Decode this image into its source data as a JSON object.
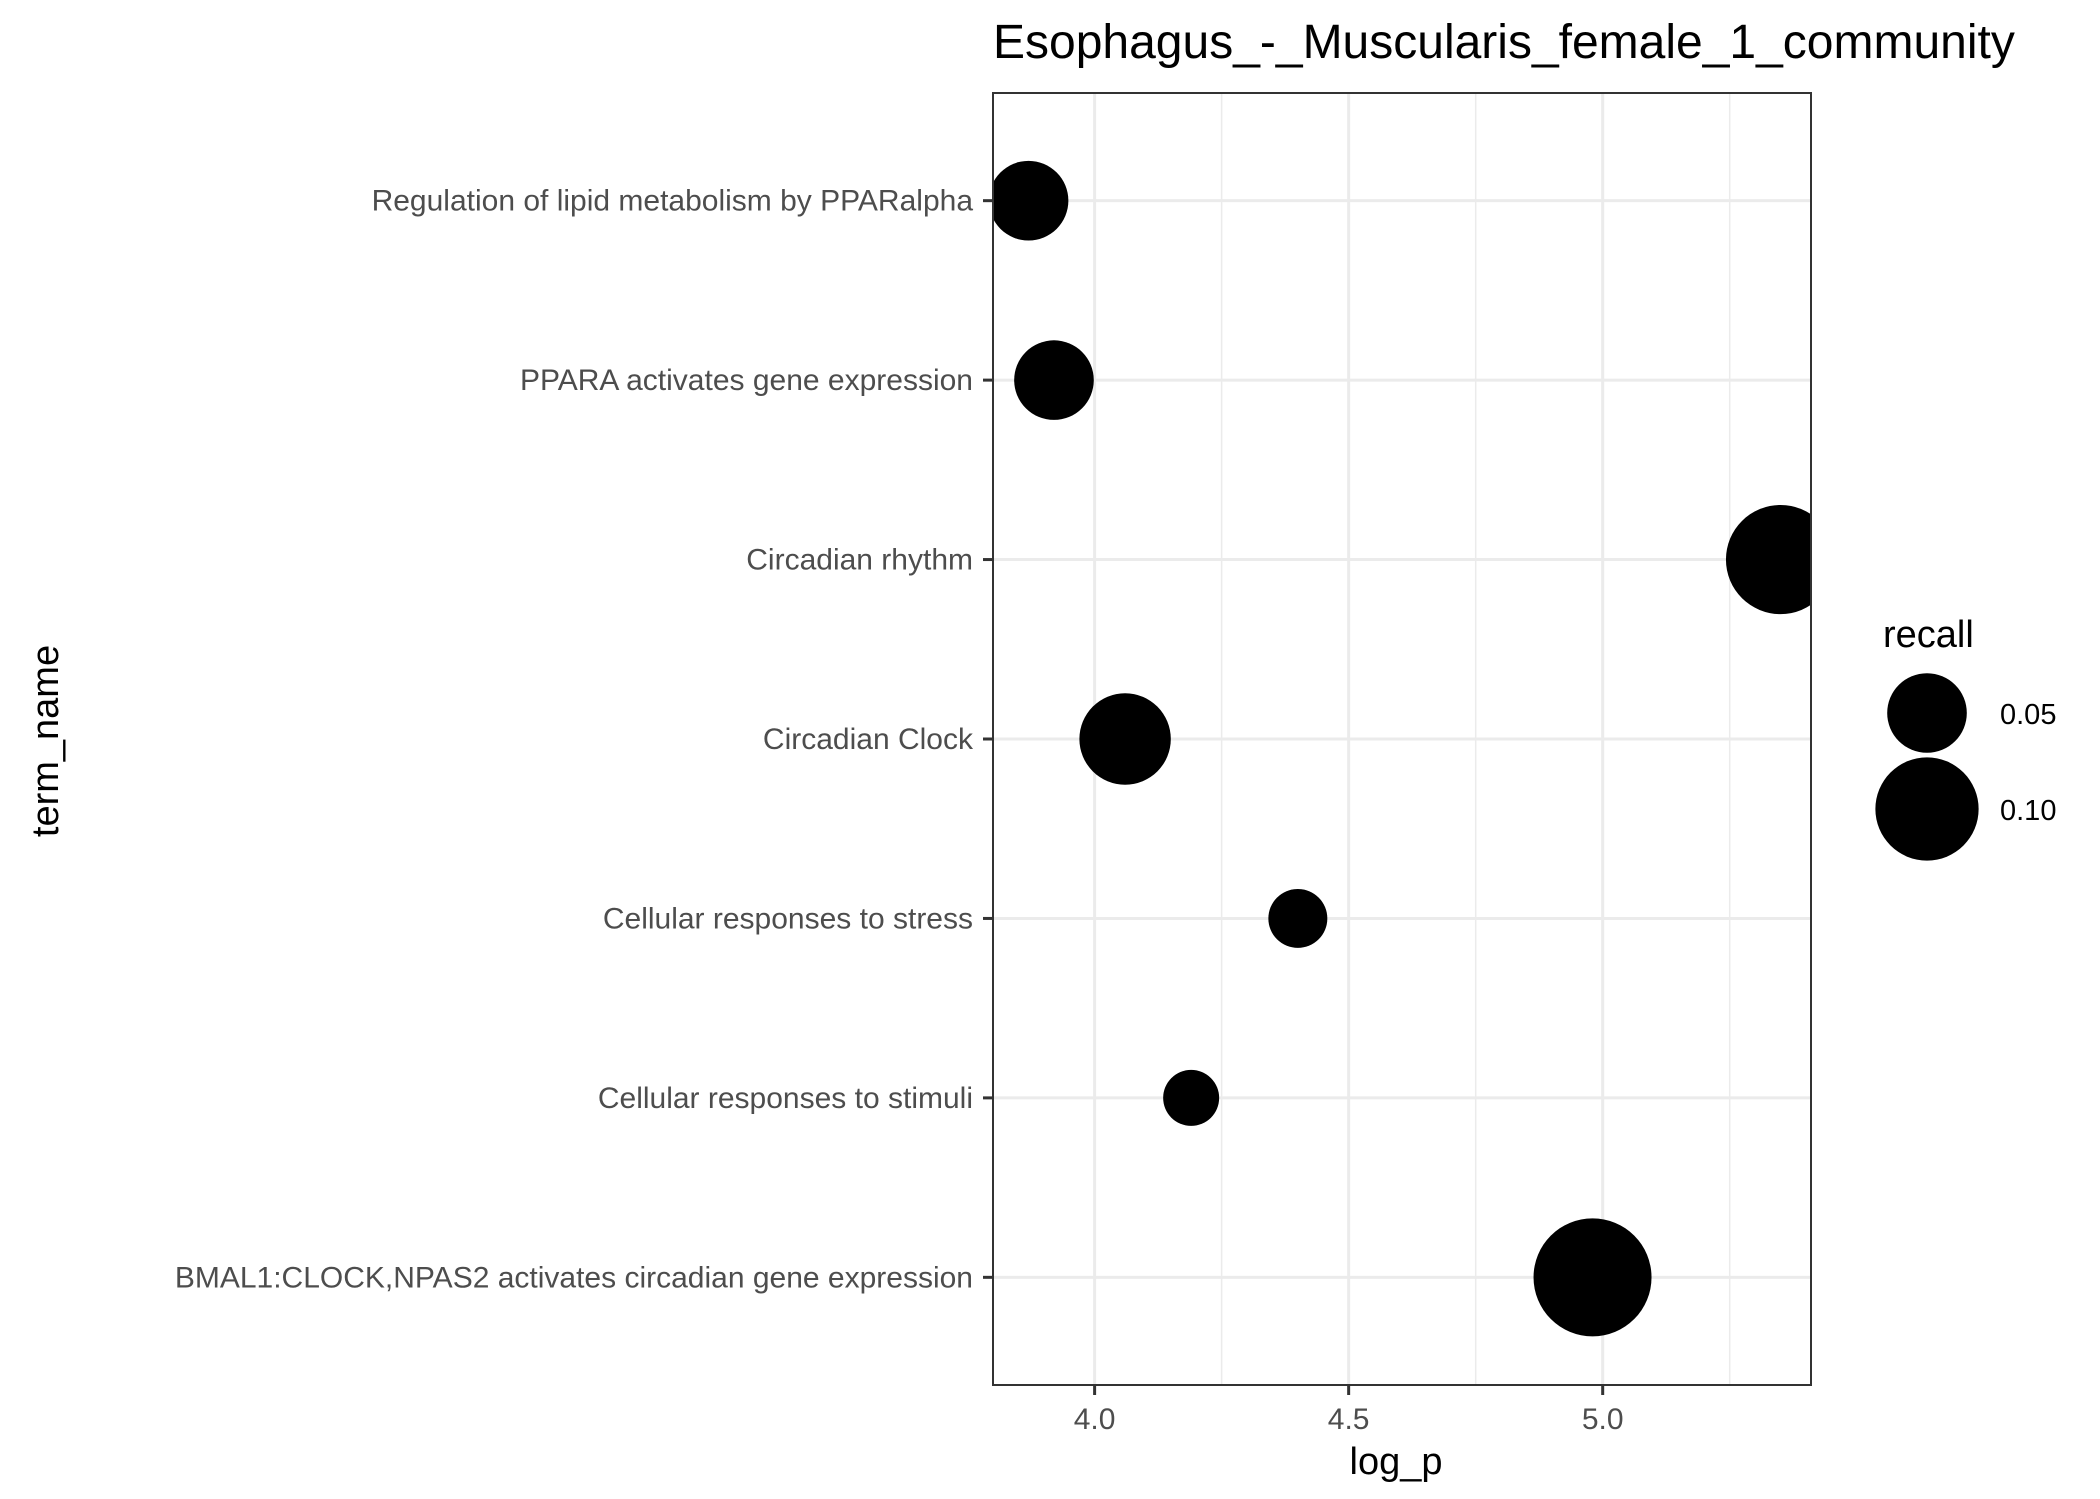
{
  "chart_data": {
    "type": "scatter",
    "title": "Esophagus_-_Muscularis_female_1_community",
    "xlabel": "log_p",
    "ylabel": "term_name",
    "xlim": [
      3.8,
      5.41
    ],
    "x_ticks": [
      4.0,
      4.5,
      5.0
    ],
    "x_tick_labels": [
      "4.0",
      "4.5",
      "5.0"
    ],
    "grid": true,
    "categories": [
      "Regulation of lipid metabolism by PPARalpha",
      "PPARA activates gene expression",
      "Circadian rhythm",
      "Circadian Clock",
      "Cellular responses to stress",
      "Cellular responses to stimuli",
      "BMAL1:CLOCK,NPAS2 activates circadian gene expression"
    ],
    "points": [
      {
        "term": "Regulation of lipid metabolism by PPARalpha",
        "log_p": 3.87,
        "recall": 0.07
      },
      {
        "term": "PPARA activates gene expression",
        "log_p": 3.92,
        "recall": 0.07
      },
      {
        "term": "Circadian rhythm",
        "log_p": 5.35,
        "recall": 0.12
      },
      {
        "term": "Circadian Clock",
        "log_p": 4.06,
        "recall": 0.09
      },
      {
        "term": "Cellular responses to stress",
        "log_p": 4.4,
        "recall": 0.035
      },
      {
        "term": "Cellular responses to stimuli",
        "log_p": 4.19,
        "recall": 0.03
      },
      {
        "term": "BMAL1:CLOCK,NPAS2 activates circadian gene expression",
        "log_p": 4.98,
        "recall": 0.135
      }
    ],
    "legend": {
      "title": "recall",
      "position": "right",
      "entries": [
        {
          "label": "0.05",
          "value": 0.05
        },
        {
          "label": "0.10",
          "value": 0.1
        }
      ]
    },
    "colors": {
      "point": "#000000",
      "grid": "#ebebeb",
      "panel_border": "#333333"
    }
  }
}
